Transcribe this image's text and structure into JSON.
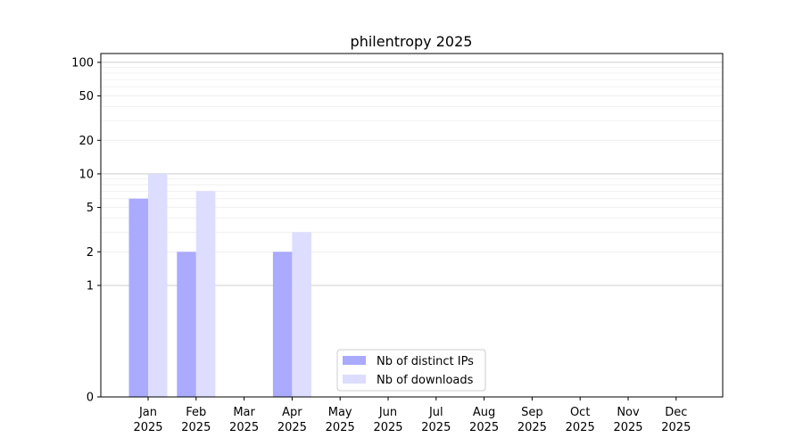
{
  "chart_data": {
    "type": "bar",
    "title": "philentropy 2025",
    "xlabel": "",
    "ylabel": "",
    "y_scale": "symlog",
    "y_ticks": [
      0,
      1,
      2,
      5,
      10,
      20,
      50,
      100
    ],
    "ylim": [
      0,
      120
    ],
    "categories": [
      [
        "Jan",
        "2025"
      ],
      [
        "Feb",
        "2025"
      ],
      [
        "Mar",
        "2025"
      ],
      [
        "Apr",
        "2025"
      ],
      [
        "May",
        "2025"
      ],
      [
        "Jun",
        "2025"
      ],
      [
        "Jul",
        "2025"
      ],
      [
        "Aug",
        "2025"
      ],
      [
        "Sep",
        "2025"
      ],
      [
        "Oct",
        "2025"
      ],
      [
        "Nov",
        "2025"
      ],
      [
        "Dec",
        "2025"
      ]
    ],
    "series": [
      {
        "name": "Nb of distinct IPs",
        "color": "#aaaaff",
        "values": [
          6,
          2,
          0,
          2,
          0,
          0,
          0,
          0,
          0,
          0,
          0,
          0
        ]
      },
      {
        "name": "Nb of downloads",
        "color": "#ddddff",
        "values": [
          10,
          7,
          0,
          3,
          0,
          0,
          0,
          0,
          0,
          0,
          0,
          0
        ]
      }
    ],
    "grid": true,
    "legend_position": "lower-center"
  }
}
